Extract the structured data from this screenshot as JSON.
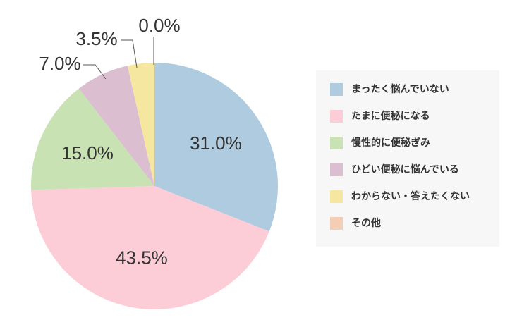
{
  "chart_data": {
    "type": "pie",
    "categories": [
      "まったく悩んでいない",
      "たまに便秘になる",
      "慢性的に便秘ぎみ",
      "ひどい便秘に悩んでいる",
      "わからない・答えたくない",
      "その他"
    ],
    "values": [
      31.0,
      43.5,
      15.0,
      7.0,
      3.5,
      0.0
    ],
    "value_labels": [
      "31.0%",
      "43.5%",
      "15.0%",
      "7.0%",
      "3.5%",
      "0.0%"
    ],
    "colors": [
      "#aecbe0",
      "#fccdd7",
      "#c8e2b4",
      "#dbbfd0",
      "#f5e7a0",
      "#f4cdb5"
    ]
  }
}
